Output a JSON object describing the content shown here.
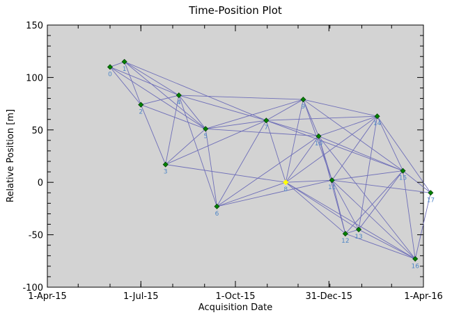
{
  "chart_data": {
    "type": "scatter",
    "title": "Time-Position Plot",
    "xlabel": "Acquisition Date",
    "ylabel": "Relative Position [m]",
    "xlim": [
      "2015-04-01",
      "2016-04-01"
    ],
    "ylim": [
      -100,
      150
    ],
    "x_tick_labels": [
      "1-Apr-15",
      "1-Jul-15",
      "1-Oct-15",
      "31-Dec-15",
      "1-Apr-16"
    ],
    "x_tick_dates": [
      "2015-04-01",
      "2015-07-01",
      "2015-10-01",
      "2015-12-31",
      "2016-04-01"
    ],
    "y_ticks": [
      -100,
      -50,
      0,
      50,
      100,
      150
    ],
    "grid": false,
    "colors": {
      "background": "#d3d3d3",
      "point": "#008000",
      "point_edge": "#003300",
      "reference_point": "#ffff00",
      "edge": "#6e6eb8",
      "point_label": "#4f86c6"
    },
    "points": [
      {
        "label": "0",
        "date": "2015-06-01",
        "y": 110
      },
      {
        "label": "1",
        "date": "2015-06-15",
        "y": 115
      },
      {
        "label": "2",
        "date": "2015-07-01",
        "y": 74
      },
      {
        "label": "3",
        "date": "2015-07-25",
        "y": 17
      },
      {
        "label": "4",
        "date": "2015-08-07",
        "y": 83
      },
      {
        "label": "5",
        "date": "2015-09-02",
        "y": 51
      },
      {
        "label": "6",
        "date": "2015-09-13",
        "y": -23
      },
      {
        "label": "7",
        "date": "2015-10-31",
        "y": 59
      },
      {
        "label": "8",
        "date": "2015-11-19",
        "y": 0,
        "reference": true
      },
      {
        "label": "9",
        "date": "2015-12-06",
        "y": 79
      },
      {
        "label": "10",
        "date": "2015-12-21",
        "y": 44
      },
      {
        "label": "11",
        "date": "2016-01-03",
        "y": 2
      },
      {
        "label": "12",
        "date": "2016-01-16",
        "y": -49
      },
      {
        "label": "13",
        "date": "2016-01-29",
        "y": -45
      },
      {
        "label": "14",
        "date": "2016-02-16",
        "y": 63
      },
      {
        "label": "15",
        "date": "2016-03-12",
        "y": 11
      },
      {
        "label": "16",
        "date": "2016-03-24",
        "y": -73
      },
      {
        "label": "17",
        "date": "2016-04-08",
        "y": -10
      }
    ],
    "connections": [
      [
        0,
        1
      ],
      [
        0,
        2
      ],
      [
        0,
        4
      ],
      [
        0,
        5
      ],
      [
        1,
        2
      ],
      [
        1,
        4
      ],
      [
        1,
        5
      ],
      [
        1,
        7
      ],
      [
        2,
        3
      ],
      [
        2,
        4
      ],
      [
        2,
        5
      ],
      [
        3,
        4
      ],
      [
        3,
        5
      ],
      [
        3,
        7
      ],
      [
        3,
        8
      ],
      [
        4,
        5
      ],
      [
        4,
        6
      ],
      [
        4,
        7
      ],
      [
        4,
        9
      ],
      [
        5,
        6
      ],
      [
        5,
        7
      ],
      [
        5,
        9
      ],
      [
        5,
        10
      ],
      [
        6,
        7
      ],
      [
        6,
        8
      ],
      [
        6,
        10
      ],
      [
        6,
        11
      ],
      [
        7,
        8
      ],
      [
        7,
        9
      ],
      [
        7,
        10
      ],
      [
        7,
        14
      ],
      [
        7,
        15
      ],
      [
        8,
        9
      ],
      [
        8,
        10
      ],
      [
        8,
        11
      ],
      [
        8,
        12
      ],
      [
        8,
        13
      ],
      [
        8,
        14
      ],
      [
        8,
        16
      ],
      [
        9,
        10
      ],
      [
        9,
        11
      ],
      [
        9,
        14
      ],
      [
        9,
        15
      ],
      [
        10,
        11
      ],
      [
        10,
        12
      ],
      [
        10,
        14
      ],
      [
        10,
        15
      ],
      [
        11,
        12
      ],
      [
        11,
        13
      ],
      [
        11,
        14
      ],
      [
        11,
        15
      ],
      [
        11,
        16
      ],
      [
        11,
        17
      ],
      [
        12,
        13
      ],
      [
        12,
        15
      ],
      [
        12,
        16
      ],
      [
        13,
        14
      ],
      [
        13,
        15
      ],
      [
        13,
        16
      ],
      [
        14,
        15
      ],
      [
        14,
        17
      ],
      [
        15,
        16
      ],
      [
        15,
        17
      ],
      [
        16,
        17
      ],
      [
        10,
        16
      ]
    ]
  }
}
